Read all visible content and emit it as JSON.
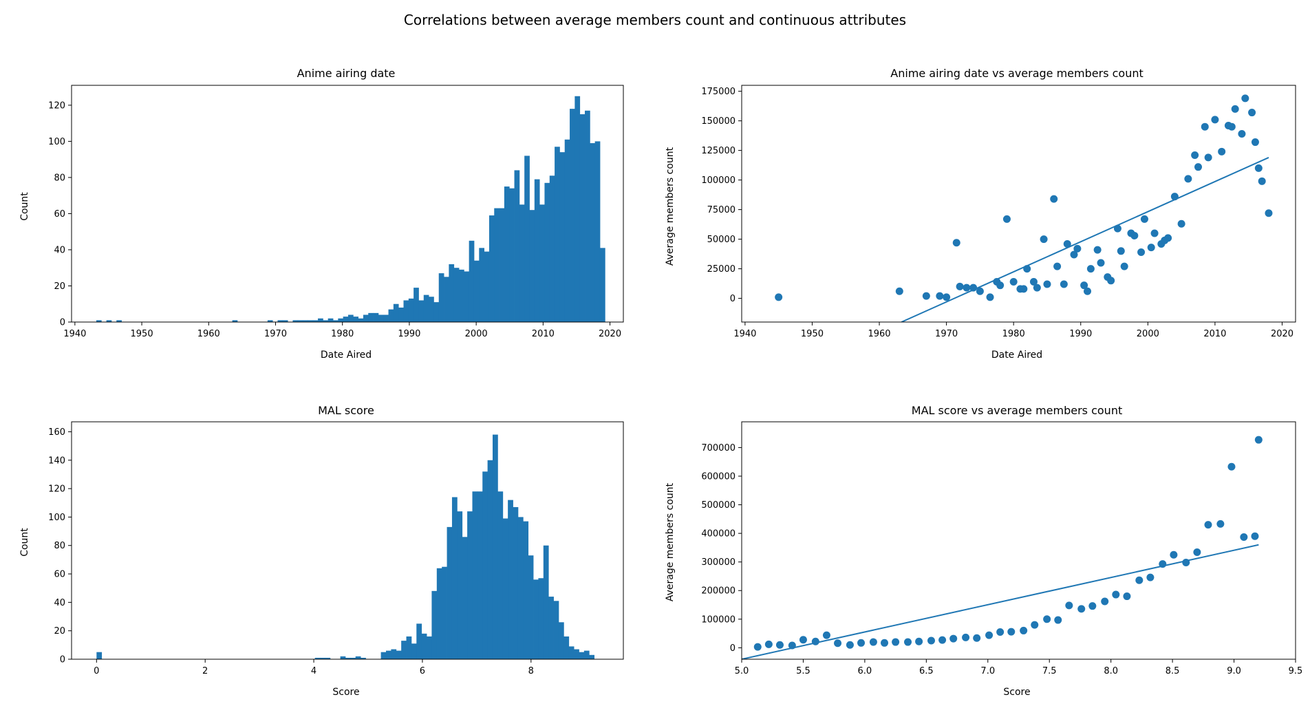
{
  "title": "Correlations between average members count and continuous attributes",
  "colors": {
    "primary": "#1f77b4"
  },
  "chart_data": [
    {
      "type": "bar",
      "title": "Anime airing date",
      "xlabel": "Date Aired",
      "ylabel": "Count",
      "xlim": [
        1939.5,
        2022
      ],
      "ylim": [
        0,
        131
      ],
      "xticks": [
        1940,
        1950,
        1960,
        1970,
        1980,
        1990,
        2000,
        2010,
        2020
      ],
      "yticks": [
        0,
        20,
        40,
        60,
        80,
        100,
        120
      ],
      "bin_start": 1943.2,
      "bin_width": 0.753,
      "values": [
        1,
        0,
        1,
        0,
        1,
        0,
        0,
        0,
        0,
        0,
        0,
        0,
        0,
        0,
        0,
        0,
        0,
        0,
        0,
        0,
        0,
        0,
        0,
        0,
        0,
        0,
        0,
        1,
        0,
        0,
        0,
        0,
        0,
        0,
        1,
        0,
        1,
        1,
        0,
        1,
        1,
        1,
        1,
        1,
        2,
        1,
        2,
        1,
        2,
        3,
        4,
        3,
        2,
        4,
        5,
        5,
        4,
        4,
        7,
        10,
        8,
        12,
        13,
        19,
        12,
        15,
        14,
        11,
        27,
        25,
        32,
        30,
        29,
        28,
        45,
        34,
        41,
        39,
        59,
        63,
        63,
        75,
        74,
        84,
        65,
        92,
        62,
        79,
        65,
        77,
        81,
        97,
        94,
        101,
        118,
        125,
        115,
        117,
        99,
        100,
        41
      ],
      "grid": false
    },
    {
      "type": "scatter",
      "title": "Anime airing date vs average members count",
      "xlabel": "Date Aired",
      "ylabel": "Average members count",
      "xlim": [
        1939.5,
        2022
      ],
      "ylim": [
        -20000,
        180000
      ],
      "xticks": [
        1940,
        1950,
        1960,
        1970,
        1980,
        1990,
        2000,
        2010,
        2020
      ],
      "yticks": [
        0,
        25000,
        50000,
        75000,
        100000,
        125000,
        150000,
        175000
      ],
      "points": [
        [
          1945,
          1000
        ],
        [
          1963,
          6000
        ],
        [
          1967,
          2000
        ],
        [
          1969,
          2000
        ],
        [
          1970,
          1000
        ],
        [
          1971.5,
          47000
        ],
        [
          1972,
          10000
        ],
        [
          1973,
          9000
        ],
        [
          1974,
          9000
        ],
        [
          1975,
          6000
        ],
        [
          1976.5,
          1000
        ],
        [
          1977.5,
          14000
        ],
        [
          1978,
          11000
        ],
        [
          1979,
          67000
        ],
        [
          1980,
          14000
        ],
        [
          1981,
          8000
        ],
        [
          1981.5,
          8000
        ],
        [
          1982,
          25000
        ],
        [
          1983,
          14000
        ],
        [
          1983.5,
          9000
        ],
        [
          1984.5,
          50000
        ],
        [
          1985,
          12000
        ],
        [
          1986,
          84000
        ],
        [
          1986.5,
          27000
        ],
        [
          1987.5,
          12000
        ],
        [
          1988,
          46000
        ],
        [
          1989,
          37000
        ],
        [
          1989.5,
          42000
        ],
        [
          1990.5,
          11000
        ],
        [
          1991,
          6000
        ],
        [
          1991.5,
          25000
        ],
        [
          1992.5,
          41000
        ],
        [
          1993,
          30000
        ],
        [
          1994,
          18000
        ],
        [
          1994.5,
          15000
        ],
        [
          1995.5,
          59000
        ],
        [
          1996,
          40000
        ],
        [
          1996.5,
          27000
        ],
        [
          1997.5,
          55000
        ],
        [
          1998,
          53000
        ],
        [
          1999,
          39000
        ],
        [
          1999.5,
          67000
        ],
        [
          2000.5,
          43000
        ],
        [
          2001,
          55000
        ],
        [
          2002,
          46000
        ],
        [
          2002.5,
          49000
        ],
        [
          2003,
          51000
        ],
        [
          2004,
          86000
        ],
        [
          2005,
          63000
        ],
        [
          2006,
          101000
        ],
        [
          2007,
          121000
        ],
        [
          2007.5,
          111000
        ],
        [
          2008.5,
          145000
        ],
        [
          2009,
          119000
        ],
        [
          2010,
          151000
        ],
        [
          2011,
          124000
        ],
        [
          2012,
          146000
        ],
        [
          2012.5,
          145000
        ],
        [
          2013,
          160000
        ],
        [
          2014,
          139000
        ],
        [
          2014.5,
          169000
        ],
        [
          2015.5,
          157000
        ],
        [
          2016,
          132000
        ],
        [
          2016.5,
          110000
        ],
        [
          2017,
          99000
        ],
        [
          2018,
          72000
        ]
      ],
      "trendline": [
        [
          1963.3,
          -20000
        ],
        [
          2018,
          119000
        ]
      ],
      "grid": false
    },
    {
      "type": "bar",
      "title": "MAL score",
      "xlabel": "Score",
      "ylabel": "Count",
      "xlim": [
        -0.46,
        9.7
      ],
      "ylim": [
        0,
        167
      ],
      "xticks": [
        0,
        2,
        4,
        6,
        8
      ],
      "yticks": [
        0,
        20,
        40,
        60,
        80,
        100,
        120,
        140,
        160
      ],
      "bin_start": 0,
      "bin_width": 0.0935,
      "values": [
        5,
        0,
        0,
        0,
        0,
        0,
        0,
        0,
        0,
        0,
        0,
        0,
        0,
        0,
        0,
        0,
        0,
        0,
        0,
        0,
        0,
        0,
        0,
        0,
        0,
        0,
        0,
        0,
        0,
        0,
        0,
        0,
        0,
        0,
        0,
        0,
        0,
        0,
        0,
        0,
        0,
        0,
        0,
        1,
        1,
        1,
        0,
        0,
        2,
        1,
        1,
        2,
        1,
        0,
        0,
        0,
        5,
        6,
        7,
        6,
        13,
        16,
        11,
        25,
        18,
        16,
        48,
        64,
        65,
        93,
        114,
        104,
        86,
        104,
        118,
        118,
        132,
        140,
        158,
        118,
        99,
        112,
        107,
        100,
        97,
        73,
        56,
        57,
        80,
        44,
        41,
        26,
        16,
        9,
        7,
        5,
        6,
        3
      ],
      "grid": false
    },
    {
      "type": "scatter",
      "title": "MAL score vs average members count",
      "xlabel": "Score",
      "ylabel": "Average members count",
      "xlim": [
        5.0,
        9.5
      ],
      "ylim": [
        -40000,
        790000
      ],
      "xticks": [
        "5.0",
        "5.5",
        "6.0",
        "6.5",
        "7.0",
        "7.5",
        "8.0",
        "8.5",
        "9.0",
        "9.5"
      ],
      "yticks": [
        0,
        100000,
        200000,
        300000,
        400000,
        500000,
        600000,
        700000
      ],
      "points": [
        [
          5.13,
          3000
        ],
        [
          5.22,
          12000
        ],
        [
          5.31,
          10000
        ],
        [
          5.41,
          8000
        ],
        [
          5.5,
          28000
        ],
        [
          5.6,
          22000
        ],
        [
          5.69,
          44000
        ],
        [
          5.78,
          16000
        ],
        [
          5.88,
          10000
        ],
        [
          5.97,
          17000
        ],
        [
          6.07,
          20000
        ],
        [
          6.16,
          17000
        ],
        [
          6.25,
          20000
        ],
        [
          6.35,
          20000
        ],
        [
          6.44,
          22000
        ],
        [
          6.54,
          25000
        ],
        [
          6.63,
          27000
        ],
        [
          6.72,
          32000
        ],
        [
          6.82,
          36000
        ],
        [
          6.91,
          34000
        ],
        [
          7.01,
          44000
        ],
        [
          7.1,
          55000
        ],
        [
          7.19,
          56000
        ],
        [
          7.29,
          60000
        ],
        [
          7.38,
          80000
        ],
        [
          7.48,
          100000
        ],
        [
          7.57,
          97000
        ],
        [
          7.66,
          148000
        ],
        [
          7.76,
          136000
        ],
        [
          7.85,
          146000
        ],
        [
          7.95,
          162000
        ],
        [
          8.04,
          186000
        ],
        [
          8.13,
          180000
        ],
        [
          8.23,
          236000
        ],
        [
          8.32,
          246000
        ],
        [
          8.42,
          293000
        ],
        [
          8.51,
          325000
        ],
        [
          8.61,
          298000
        ],
        [
          8.7,
          334000
        ],
        [
          8.79,
          430000
        ],
        [
          8.89,
          433000
        ],
        [
          8.98,
          633000
        ],
        [
          9.08,
          387000
        ],
        [
          9.17,
          390000
        ],
        [
          9.2,
          727000
        ]
      ],
      "trendline": [
        [
          5.0,
          -40000
        ],
        [
          9.2,
          360000
        ]
      ],
      "grid": false
    }
  ]
}
